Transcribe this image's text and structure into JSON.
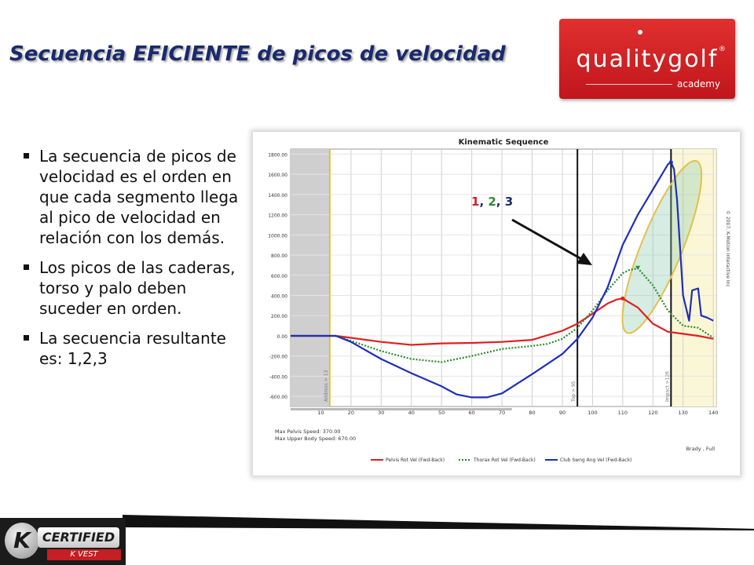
{
  "slide": {
    "title": "Secuencia EFICIENTE de picos de velocidad",
    "bullets": [
      "La secuencia de picos de velocidad es el orden en que cada segmento llega al pico de velocidad en relación con los demás.",
      "Los picos de las caderas, torso y palo deben suceder en orden.",
      "La secuencia resultante es: 1,2,3"
    ]
  },
  "logo": {
    "main": "qualitygolf",
    "sub": "academy",
    "reg": "®"
  },
  "badge": {
    "letter": "K",
    "main": "CERTIFIED",
    "sub": "K VEST"
  },
  "colors": {
    "pelvis": "#e02020",
    "thorax": "#2a8a2a",
    "club": "#1f2fb8",
    "title": "#1a2a6c"
  },
  "annotation": {
    "parts": [
      {
        "text": "1",
        "color": "#d62020"
      },
      {
        "text": ", ",
        "color": "#1a2a6c"
      },
      {
        "text": "2",
        "color": "#2e8b2e"
      },
      {
        "text": ", ",
        "color": "#1a2a6c"
      },
      {
        "text": "3",
        "color": "#1a2a6c"
      }
    ]
  },
  "chart_data": {
    "type": "line",
    "title": "Kinematic Sequence",
    "x_ticks": [
      10,
      20,
      30,
      40,
      50,
      60,
      70,
      80,
      90,
      100,
      110,
      120,
      130,
      140
    ],
    "y_ticks": [
      "1800.00",
      "1600.00",
      "1400.00",
      "1200.00",
      "1000.00",
      "800.00",
      "600.00",
      "400.00",
      "200.00",
      "0.00",
      "-200.00",
      "-400.00",
      "-600.00"
    ],
    "xlim": [
      0,
      141
    ],
    "ylim": [
      -700,
      1850
    ],
    "shaded_start_end": [
      0,
      13
    ],
    "shaded_finish_range": [
      126,
      141
    ],
    "markers": [
      {
        "x": 13,
        "label": "Address > 13",
        "color": "#e6b800"
      },
      {
        "x": 95,
        "label": "Top > 95",
        "color": "#111111"
      },
      {
        "x": 126,
        "label": "Impact >126",
        "color": "#111111"
      }
    ],
    "series": [
      {
        "name": "Pelvis Rot Vel (Fwd-Back)",
        "color": "#e02020",
        "style": "solid",
        "x": [
          0,
          10,
          15,
          20,
          30,
          40,
          50,
          60,
          70,
          80,
          90,
          95,
          100,
          105,
          108,
          110,
          115,
          120,
          125,
          130,
          135,
          140
        ],
        "y": [
          0,
          0,
          0,
          -20,
          -60,
          -90,
          -75,
          -70,
          -60,
          -40,
          50,
          120,
          220,
          320,
          360,
          370,
          280,
          120,
          40,
          20,
          0,
          -30
        ]
      },
      {
        "name": "Thorax Rot Vel (Fwd-Back)",
        "color": "#2a8a2a",
        "style": "dotted",
        "x": [
          0,
          10,
          15,
          20,
          30,
          40,
          50,
          60,
          70,
          80,
          85,
          90,
          95,
          100,
          105,
          110,
          112,
          115,
          120,
          125,
          130,
          135,
          140
        ],
        "y": [
          0,
          0,
          0,
          -50,
          -150,
          -230,
          -260,
          -200,
          -130,
          -100,
          -80,
          -30,
          80,
          250,
          450,
          620,
          650,
          670,
          500,
          250,
          100,
          80,
          -20
        ]
      },
      {
        "name": "Club Swng Ang Vel (Fwd-Back)",
        "color": "#1f2fb8",
        "style": "solid",
        "x": [
          0,
          10,
          15,
          20,
          30,
          40,
          50,
          55,
          60,
          65,
          70,
          80,
          90,
          95,
          100,
          105,
          110,
          115,
          120,
          123,
          125,
          126,
          127,
          128,
          130,
          132,
          133,
          135,
          136,
          138,
          140
        ],
        "y": [
          0,
          0,
          0,
          -60,
          -230,
          -370,
          -500,
          -580,
          -610,
          -610,
          -570,
          -380,
          -180,
          -30,
          180,
          480,
          900,
          1200,
          1450,
          1600,
          1700,
          1720,
          1650,
          1350,
          400,
          150,
          450,
          470,
          200,
          180,
          150
        ]
      }
    ],
    "legend": [
      "Pelvis Rot Vel (Fwd-Back)",
      "Thorax Rot Vel (Fwd-Back)",
      "Club Swng Ang Vel (Fwd-Back)"
    ],
    "stats": [
      "Max Pelvis Speed:  370.00",
      "Max Upper Body Speed:  670.00"
    ],
    "footer_right": "Brady , Full",
    "copyright": "© 2007, K-Motion Interactive Inc",
    "grid": true
  }
}
